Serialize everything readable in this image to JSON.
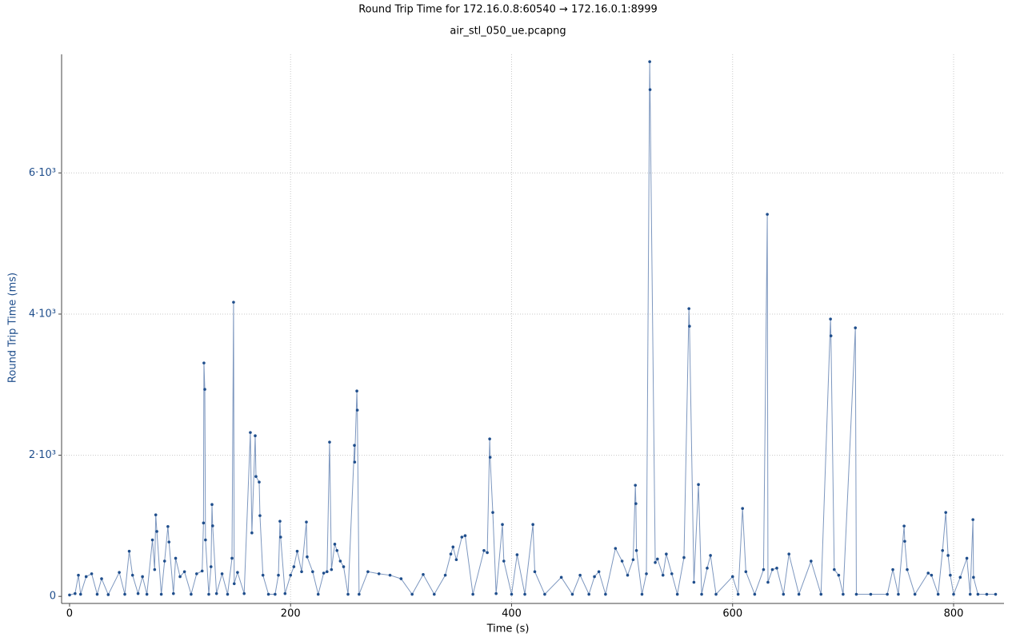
{
  "chart_data": {
    "type": "line",
    "title": "Round Trip Time for 172.16.0.8:60540 → 172.16.0.1:8999",
    "subtitle": "air_stl_050_ue.pcapng",
    "x_label": "Time (s)",
    "y_label": "Round Trip Time (ms)",
    "color": "#1f4e8c",
    "line_color": "#7d97bf",
    "grid": true,
    "xlim": [
      -7.2,
      845.6
    ],
    "ylim": [
      -100,
      7680
    ],
    "xticks": [
      0,
      200,
      400,
      600,
      800
    ],
    "yticks": [
      0,
      {
        "value": 2000,
        "label": "2·10³"
      },
      {
        "value": 4000,
        "label": "4·10³"
      },
      {
        "value": 6000,
        "label": "6·10³"
      }
    ],
    "x": [
      0,
      5,
      8,
      10,
      15,
      20,
      25,
      29,
      35,
      45,
      50,
      54,
      57,
      62,
      66,
      70,
      75,
      77,
      78,
      79,
      83,
      86,
      89,
      90,
      94,
      96,
      100,
      104,
      110,
      115,
      120,
      121.2,
      121.6,
      122.4,
      123,
      126,
      128,
      128.9,
      129.5,
      133,
      138,
      143,
      147,
      148.4,
      149,
      152,
      158,
      163.6,
      165,
      168,
      168.7,
      171.6,
      172.3,
      175,
      180,
      186,
      189,
      190.4,
      191,
      195,
      200,
      203,
      206,
      210,
      214.3,
      215,
      220,
      225,
      230,
      233,
      235.3,
      237,
      240,
      242,
      245,
      248,
      252,
      257.8,
      258,
      260,
      260.4,
      262,
      270,
      280,
      290,
      300,
      310,
      320,
      330,
      340,
      345,
      347,
      350,
      355,
      358,
      365,
      375,
      378,
      380.2,
      380.6,
      383,
      386,
      391.7,
      393,
      400,
      405,
      412,
      419.3,
      421,
      430,
      445,
      455,
      462,
      470,
      475,
      479,
      485,
      494,
      500,
      505,
      510,
      512,
      512.5,
      513,
      518,
      522,
      525,
      525.3,
      530,
      532,
      537,
      540,
      545,
      550,
      556,
      560.5,
      561,
      565,
      569.1,
      572,
      577,
      580,
      585,
      600,
      605,
      609,
      612,
      620,
      628,
      631.4,
      632,
      636,
      640,
      646,
      651,
      660,
      671,
      680,
      688.6,
      689,
      692,
      696,
      700,
      711.1,
      712,
      725,
      740,
      745,
      750,
      755.2,
      755.8,
      758,
      765,
      777,
      780,
      786,
      790,
      792.9,
      795,
      797,
      800,
      806,
      812,
      815,
      817.5,
      818,
      822,
      830,
      838
    ],
    "values": [
      20,
      40,
      300,
      30,
      280,
      320,
      30,
      250,
      25,
      340,
      30,
      640,
      300,
      40,
      280,
      30,
      800,
      380,
      1155,
      920,
      30,
      500,
      990,
      770,
      40,
      540,
      280,
      350,
      30,
      320,
      360,
      1040,
      3307,
      2933,
      800,
      30,
      420,
      1302,
      1000,
      40,
      320,
      30,
      540,
      4168,
      180,
      340,
      40,
      2322,
      900,
      2276,
      1699,
      1620,
      1144,
      300,
      30,
      30,
      300,
      1065,
      840,
      40,
      300,
      420,
      640,
      350,
      1053,
      560,
      350,
      30,
      330,
      350,
      2186,
      380,
      740,
      650,
      500,
      420,
      30,
      2140,
      1903,
      2910,
      2639,
      30,
      350,
      320,
      300,
      250,
      30,
      310,
      30,
      300,
      600,
      700,
      520,
      840,
      860,
      30,
      650,
      620,
      2231,
      1971,
      1189,
      40,
      1019,
      500,
      30,
      590,
      30,
      1019,
      350,
      30,
      270,
      30,
      300,
      30,
      280,
      350,
      30,
      680,
      500,
      300,
      520,
      1574,
      1314,
      650,
      30,
      320,
      7576,
      7180,
      480,
      530,
      300,
      600,
      320,
      30,
      550,
      4077,
      3828,
      200,
      1585,
      30,
      400,
      580,
      30,
      280,
      30,
      1246,
      350,
      30,
      380,
      5413,
      200,
      380,
      400,
      30,
      600,
      30,
      500,
      30,
      3930,
      3692,
      380,
      300,
      30,
      3805,
      30,
      30,
      30,
      380,
      30,
      997,
      780,
      380,
      30,
      330,
      300,
      30,
      650,
      1189,
      580,
      300,
      30,
      270,
      540,
      30,
      1087,
      270,
      30,
      30,
      30
    ]
  }
}
